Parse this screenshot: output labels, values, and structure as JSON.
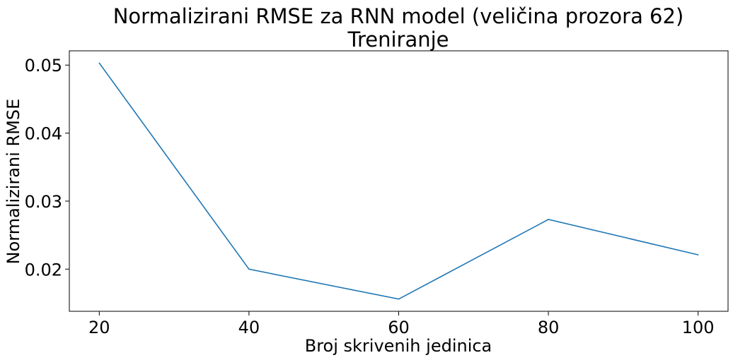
{
  "chart_data": {
    "type": "line",
    "title": "Normalizirani RMSE za RNN model (veličina prozora 62)",
    "subtitle": "Treniranje",
    "xlabel": "Broj skrivenih jedinica",
    "ylabel": "Normalizirani RMSE",
    "x": [
      20,
      40,
      60,
      80,
      100
    ],
    "series": [
      {
        "values": [
          0.0503,
          0.02,
          0.0156,
          0.0273,
          0.0221
        ]
      }
    ],
    "xticks": [
      20,
      40,
      60,
      80,
      100
    ],
    "xtick_labels": [
      "20",
      "40",
      "60",
      "80",
      100
    ],
    "yticks": [
      0.02,
      0.03,
      0.04,
      0.05
    ],
    "ytick_labels": [
      "0.02",
      "0.03",
      "0.04",
      "0.05"
    ],
    "xlim": [
      16,
      104
    ],
    "ylim": [
      0.0138,
      0.0521
    ],
    "grid": false,
    "line_color": "#1f77b4"
  }
}
